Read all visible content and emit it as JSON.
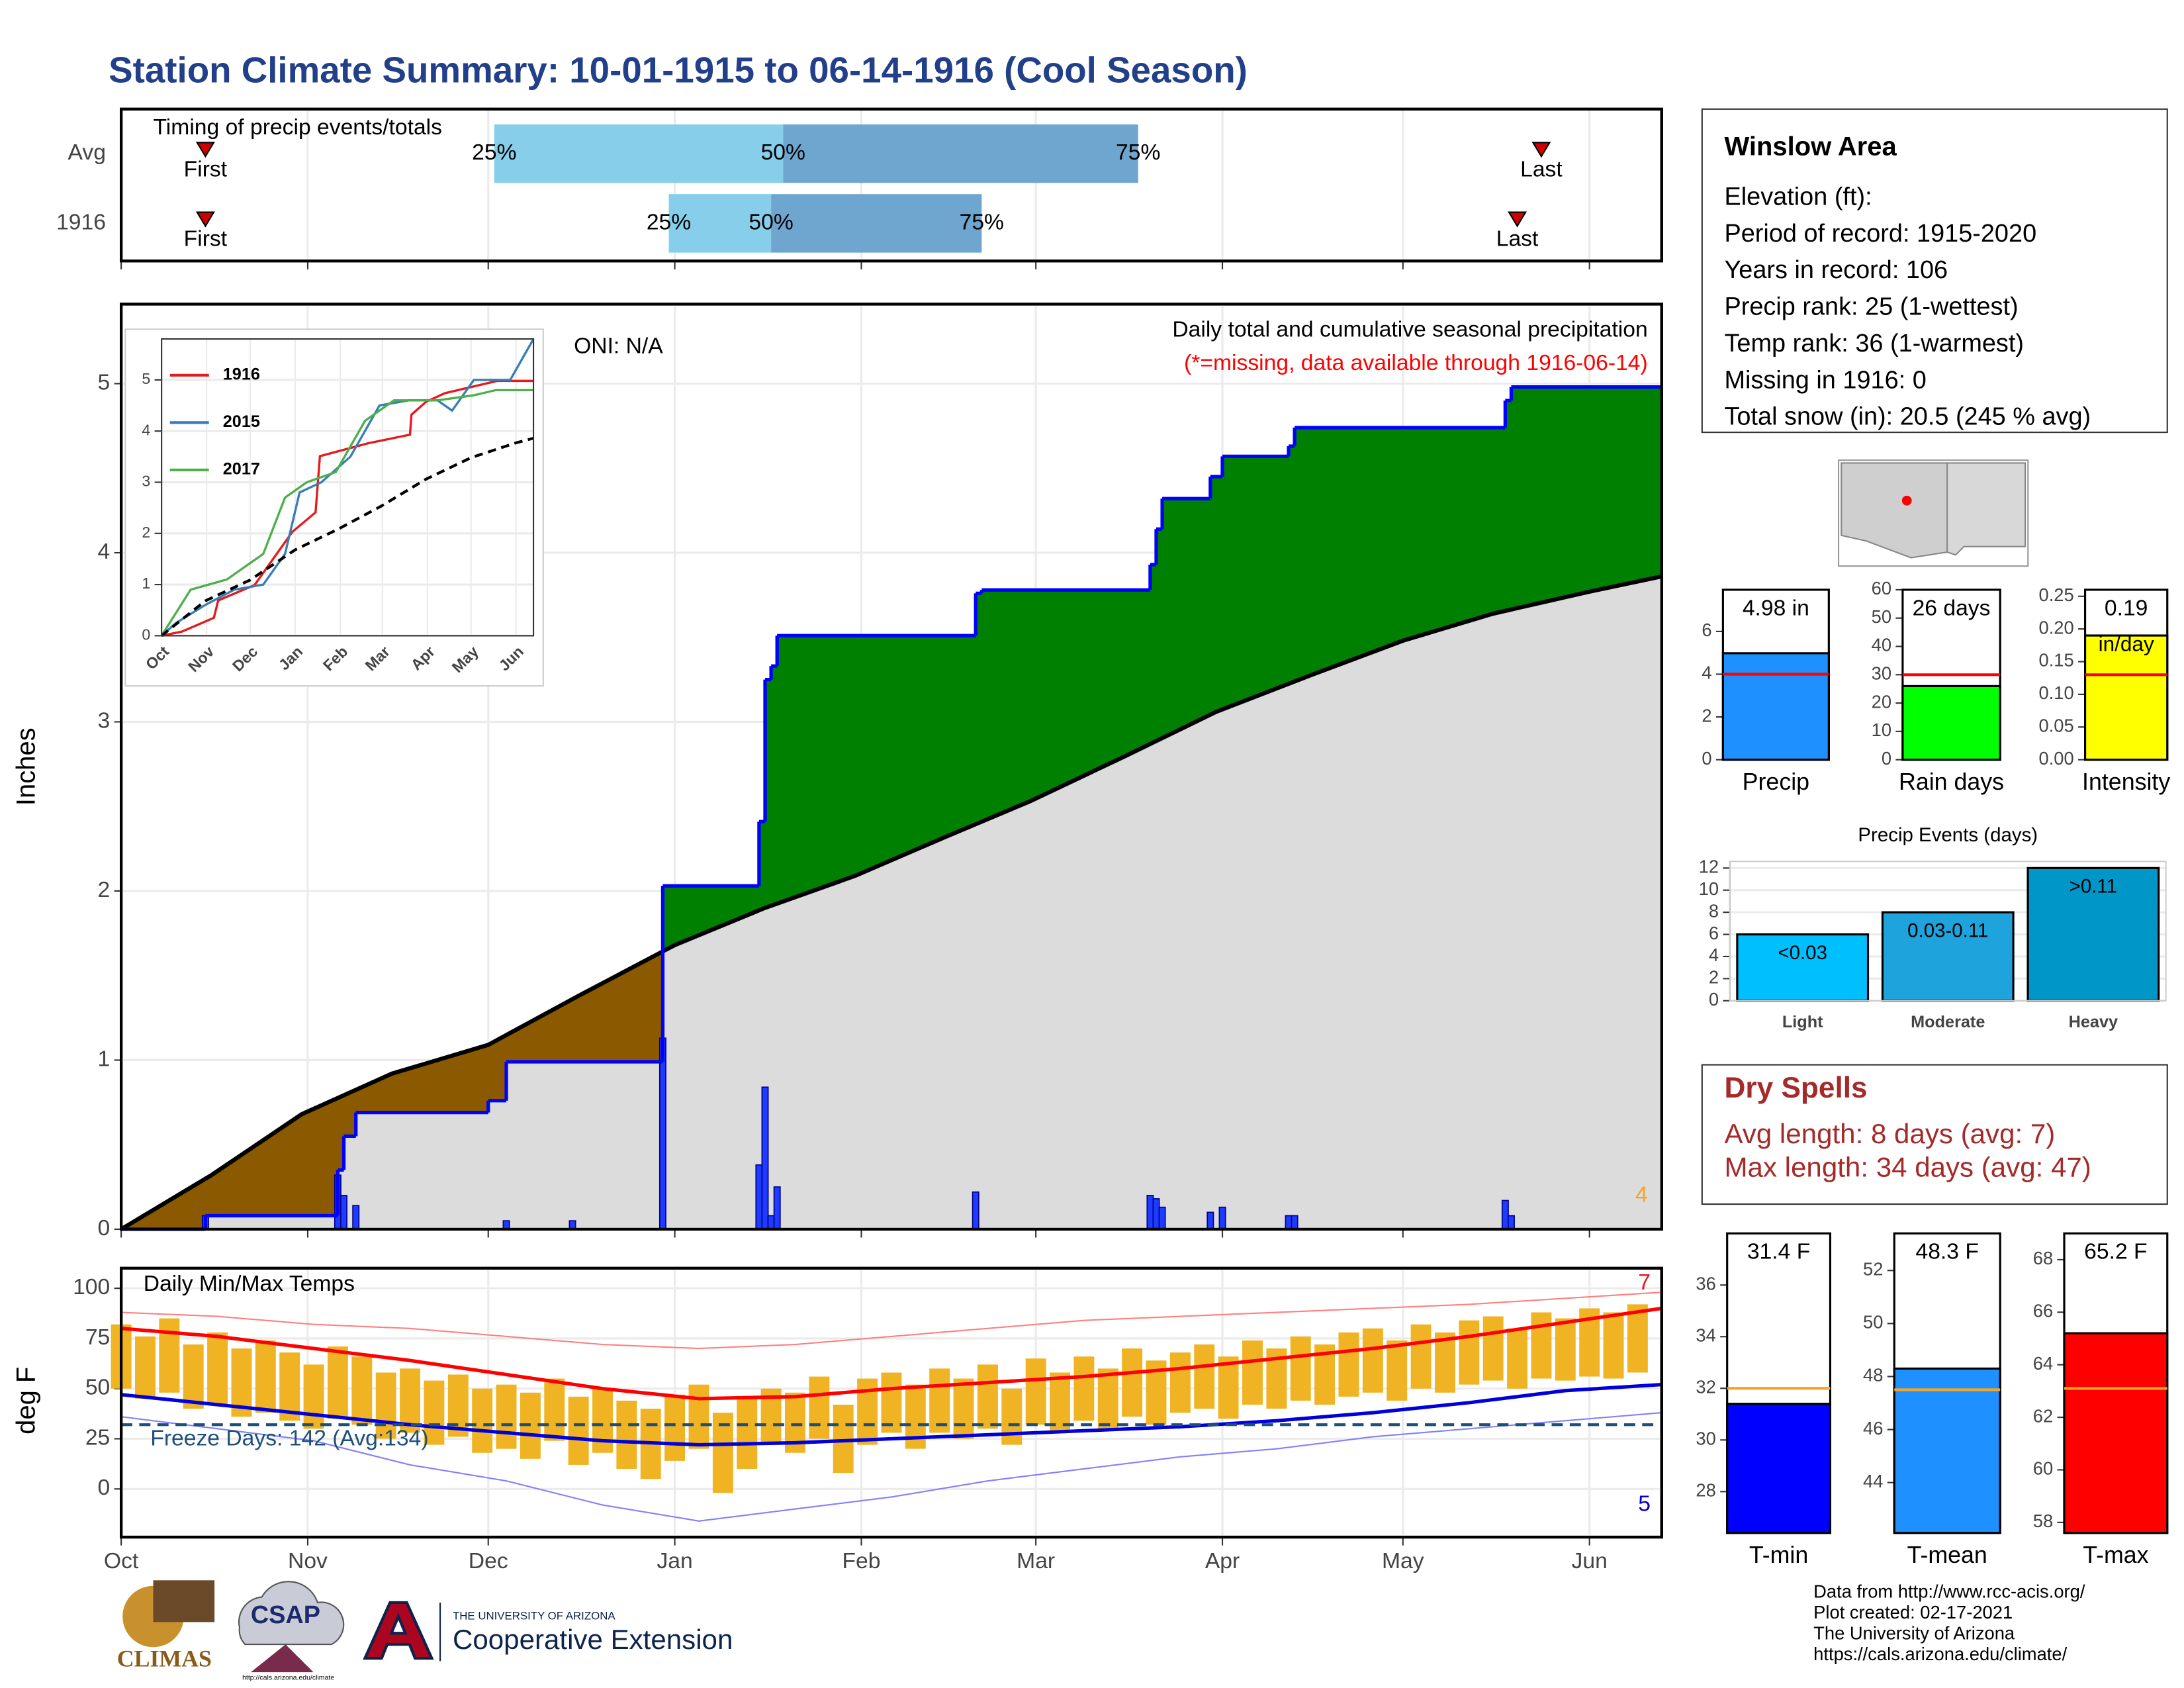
{
  "title": "Station Climate Summary: 10-01-1915 to 06-14-1916 (Cool Season)",
  "chart_data": [
    {
      "type": "timing",
      "title": "Timing of precip events/totals",
      "categories": [
        "Avg",
        "1916"
      ],
      "xlim": [
        0,
        256
      ],
      "rows": [
        {
          "first": 14,
          "q25": 62,
          "q50": 110,
          "q75": 169,
          "last": 236
        },
        {
          "first": 14,
          "q25": 91,
          "q50": 108,
          "q75": 143,
          "last": 232
        }
      ],
      "labels": {
        "first": "First",
        "last": "Last",
        "q25": "25%",
        "q50": "50%",
        "q75": "75%"
      },
      "colors": {
        "lower": "#87ceeb",
        "upper": "#6ea6cf",
        "marker": "#cc0000"
      },
      "grid": true
    },
    {
      "type": "precip",
      "title": "Daily total and cumulative seasonal precipitation",
      "subtitle": "(*=missing, data available through 1916-06-14)",
      "annotations": [
        "ONI: N/A",
        "4"
      ],
      "annotation_colors": [
        "#000000",
        "#f5a623"
      ],
      "ylabel": "Inches",
      "xlim": [
        0,
        256
      ],
      "ylim": [
        0,
        5.47
      ],
      "yticks": [
        0,
        1,
        2,
        3,
        4,
        5
      ],
      "grid": true,
      "fill_colors": {
        "above": "#008000",
        "below": "#8b5a00",
        "base": "#dcdcdc"
      },
      "series": [
        {
          "style": "step",
          "color": "#0000ff",
          "x": [
            0,
            14,
            36,
            37,
            39,
            61,
            64,
            90,
            106,
            107,
            108,
            109,
            142,
            143,
            171,
            172,
            173,
            181,
            183,
            194,
            195,
            230,
            231
          ],
          "values": [
            0,
            0.08,
            0.35,
            0.55,
            0.69,
            0.76,
            0.99,
            2.03,
            2.41,
            3.25,
            3.33,
            3.51,
            3.76,
            3.78,
            3.93,
            4.14,
            4.32,
            4.45,
            4.57,
            4.63,
            4.74,
            4.9,
            4.98
          ]
        },
        {
          "style": "line",
          "color": "#000000",
          "x": [
            0,
            15,
            30,
            45,
            61,
            76,
            92,
            107,
            122,
            137,
            151,
            167,
            182,
            198,
            213,
            228,
            244,
            256
          ],
          "values": [
            0,
            0.32,
            0.68,
            0.92,
            1.09,
            1.38,
            1.68,
            1.9,
            2.09,
            2.32,
            2.53,
            2.8,
            3.06,
            3.28,
            3.48,
            3.64,
            3.77,
            3.86
          ]
        },
        {
          "style": "bars",
          "color": "#1e3cff",
          "x": [
            14,
            36,
            37,
            39,
            64,
            75,
            90,
            106,
            107,
            108,
            109,
            142,
            171,
            172,
            173,
            181,
            183,
            194,
            195,
            230,
            231
          ],
          "values": [
            0.08,
            0.32,
            0.2,
            0.14,
            0.05,
            0.05,
            1.13,
            0.38,
            0.84,
            0.08,
            0.25,
            0.22,
            0.2,
            0.18,
            0.13,
            0.1,
            0.13,
            0.08,
            0.08,
            0.17,
            0.08
          ]
        }
      ]
    },
    {
      "type": "line",
      "xlim": [
        0,
        256
      ],
      "ylim": [
        0,
        5.8
      ],
      "yticks": [
        0,
        1,
        2,
        3,
        4,
        5
      ],
      "grid": true,
      "xticks": [
        {
          "value": 0,
          "label": "Oct"
        },
        {
          "value": 31,
          "label": "Nov"
        },
        {
          "value": 61,
          "label": "Dec"
        },
        {
          "value": 92,
          "label": "Jan"
        },
        {
          "value": 123,
          "label": "Feb"
        },
        {
          "value": 152,
          "label": "Mar"
        },
        {
          "value": 183,
          "label": "Apr"
        },
        {
          "value": 213,
          "label": "May"
        },
        {
          "value": 244,
          "label": "Jun"
        }
      ],
      "series": [
        {
          "name": "1916",
          "color": "#e41a1c",
          "x": [
            0,
            14,
            36,
            39,
            64,
            90,
            106,
            109,
            142,
            171,
            172,
            182,
            195,
            231,
            256
          ],
          "values": [
            0,
            0.08,
            0.35,
            0.69,
            0.99,
            2.03,
            2.41,
            3.51,
            3.76,
            3.93,
            4.32,
            4.57,
            4.74,
            4.98,
            4.98
          ]
        },
        {
          "name": "2015",
          "color": "#377eb8",
          "x": [
            0,
            10,
            30,
            50,
            70,
            85,
            95,
            110,
            130,
            150,
            170,
            190,
            200,
            215,
            240,
            256
          ],
          "values": [
            0,
            0.25,
            0.6,
            0.9,
            1.0,
            1.6,
            2.8,
            3.0,
            3.5,
            4.5,
            4.6,
            4.6,
            4.4,
            5.0,
            5.0,
            5.8
          ]
        },
        {
          "name": "2017",
          "color": "#4daf4a",
          "x": [
            0,
            20,
            45,
            70,
            85,
            100,
            120,
            140,
            160,
            190,
            215,
            230,
            256
          ],
          "values": [
            0,
            0.9,
            1.1,
            1.6,
            2.7,
            3.0,
            3.2,
            4.2,
            4.6,
            4.6,
            4.7,
            4.8,
            4.8
          ]
        },
        {
          "color": "#000000",
          "dash": true,
          "x": [
            0,
            30,
            61,
            92,
            122,
            151,
            182,
            213,
            244,
            256
          ],
          "values": [
            0,
            0.68,
            1.09,
            1.68,
            2.09,
            2.53,
            3.06,
            3.48,
            3.77,
            3.86
          ]
        }
      ]
    },
    {
      "type": "temps",
      "title": "Daily Min/Max Temps",
      "ylabel": "deg F",
      "annotations": [
        "Freeze Days: 142 (Avg:134)",
        "7",
        "5"
      ],
      "annotation_colors": [
        "#1f4e79",
        "#e41a1c",
        "#0000cc"
      ],
      "xlim": [
        0,
        256
      ],
      "ylim": [
        -24,
        110
      ],
      "yticks": [
        0,
        25,
        50,
        75,
        100
      ],
      "grid": true,
      "freeze": 32,
      "freeze_color": "#1f4e79",
      "xticks": [
        {
          "value": 0,
          "label": "Oct"
        },
        {
          "value": 31,
          "label": "Nov"
        },
        {
          "value": 61,
          "label": "Dec"
        },
        {
          "value": 92,
          "label": "Jan"
        },
        {
          "value": 123,
          "label": "Feb"
        },
        {
          "value": 152,
          "label": "Mar"
        },
        {
          "value": 183,
          "label": "Apr"
        },
        {
          "value": 213,
          "label": "May"
        },
        {
          "value": 244,
          "label": "Jun"
        }
      ],
      "daily": {
        "color": "#f0b323",
        "x": [
          0,
          4,
          8,
          12,
          16,
          20,
          24,
          28,
          32,
          36,
          40,
          44,
          48,
          52,
          56,
          60,
          64,
          68,
          72,
          76,
          80,
          84,
          88,
          92,
          96,
          100,
          104,
          108,
          112,
          116,
          120,
          124,
          128,
          132,
          136,
          140,
          144,
          148,
          152,
          156,
          160,
          164,
          168,
          172,
          176,
          180,
          184,
          188,
          192,
          196,
          200,
          204,
          208,
          212,
          216,
          220,
          224,
          228,
          232,
          236,
          240,
          244,
          248,
          252
        ],
        "high": [
          82,
          76,
          85,
          72,
          78,
          70,
          74,
          68,
          62,
          71,
          66,
          58,
          60,
          54,
          57,
          50,
          52,
          48,
          55,
          46,
          50,
          44,
          40,
          47,
          52,
          38,
          45,
          50,
          48,
          56,
          42,
          55,
          58,
          52,
          60,
          55,
          62,
          50,
          65,
          58,
          66,
          60,
          70,
          64,
          68,
          72,
          66,
          74,
          70,
          76,
          72,
          78,
          80,
          74,
          82,
          78,
          84,
          86,
          80,
          88,
          85,
          90,
          88,
          92
        ],
        "low": [
          50,
          45,
          48,
          40,
          42,
          36,
          38,
          34,
          30,
          35,
          32,
          25,
          28,
          22,
          26,
          18,
          20,
          15,
          24,
          12,
          18,
          10,
          5,
          14,
          20,
          -2,
          10,
          22,
          18,
          25,
          8,
          22,
          28,
          20,
          28,
          25,
          30,
          22,
          32,
          28,
          34,
          30,
          36,
          32,
          38,
          40,
          35,
          42,
          40,
          44,
          42,
          46,
          48,
          44,
          50,
          48,
          52,
          54,
          50,
          55,
          54,
          56,
          55,
          58
        ]
      },
      "series": [
        {
          "style": "thin",
          "color": "#ff8080",
          "x": [
            0,
            16,
            32,
            48,
            64,
            80,
            96,
            112,
            128,
            144,
            160,
            176,
            192,
            208,
            224,
            240,
            256
          ],
          "values": [
            88,
            86,
            82,
            80,
            76,
            72,
            70,
            72,
            76,
            80,
            84,
            86,
            88,
            90,
            92,
            95,
            98
          ]
        },
        {
          "style": "thin",
          "color": "#8080ff",
          "x": [
            0,
            16,
            32,
            48,
            64,
            80,
            96,
            112,
            128,
            144,
            160,
            176,
            192,
            208,
            224,
            240,
            256
          ],
          "values": [
            36,
            30,
            24,
            12,
            4,
            -8,
            -16,
            -10,
            -4,
            4,
            10,
            16,
            20,
            26,
            30,
            34,
            38
          ]
        },
        {
          "style": "line",
          "color": "#ff0000",
          "x": [
            0,
            16,
            32,
            48,
            64,
            80,
            96,
            112,
            128,
            144,
            160,
            176,
            192,
            208,
            224,
            240,
            256
          ],
          "values": [
            80,
            76,
            70,
            64,
            57,
            50,
            45,
            46,
            50,
            53,
            56,
            60,
            65,
            70,
            76,
            83,
            90
          ]
        },
        {
          "style": "line",
          "color": "#0000dd",
          "x": [
            0,
            16,
            32,
            48,
            64,
            80,
            96,
            112,
            128,
            144,
            160,
            176,
            192,
            208,
            224,
            240,
            256
          ],
          "values": [
            47,
            42,
            37,
            32,
            28,
            24,
            22,
            23,
            25,
            27,
            29,
            31,
            34,
            38,
            43,
            49,
            52
          ]
        }
      ]
    },
    {
      "type": "bar",
      "categories": [
        "Precip"
      ],
      "values": [
        4.98
      ],
      "value_labels": [
        "4.98 in"
      ],
      "colors": [
        "#1e90ff"
      ],
      "avg": 4.0,
      "avg_color": "#ff0000",
      "ylim": [
        0,
        7.95
      ],
      "yticks": [
        0,
        2,
        4,
        6
      ]
    },
    {
      "type": "bar",
      "categories": [
        "Rain days"
      ],
      "values": [
        26
      ],
      "value_labels": [
        "26 days"
      ],
      "colors": [
        "#00ff00"
      ],
      "avg": 30,
      "avg_color": "#ff0000",
      "ylim": [
        0,
        60
      ],
      "yticks": [
        0,
        10,
        20,
        30,
        40,
        50,
        60
      ]
    },
    {
      "type": "bar",
      "categories": [
        "Intensity"
      ],
      "values": [
        0.19
      ],
      "unit_label": "in/day",
      "colors": [
        "#ffff00"
      ],
      "avg": 0.13,
      "avg_color": "#ff0000",
      "ylim": [
        0,
        0.26
      ],
      "yticks": [
        {
          "value": 0,
          "label": "0.00"
        },
        0.05,
        {
          "value": 0.1,
          "label": "0.10"
        },
        0.15,
        {
          "value": 0.2,
          "label": "0.20"
        },
        0.25
      ]
    },
    {
      "type": "bar",
      "title": "Precip Events (days)",
      "categories": [
        "Light",
        "Moderate",
        "Heavy"
      ],
      "values": [
        6,
        8,
        12
      ],
      "bin_labels": [
        "<0.03",
        "0.03-0.11",
        ">0.11"
      ],
      "colors": [
        "#00bfff",
        "#1ea3dc",
        "#0096c8"
      ],
      "ylim": [
        0,
        12.6
      ],
      "yticks": [
        0,
        2,
        4,
        6,
        8,
        10,
        12
      ],
      "grid": true
    },
    {
      "type": "bar",
      "categories": [
        "T-min"
      ],
      "values": [
        31.4
      ],
      "value_labels": [
        "31.4 F"
      ],
      "colors": [
        "#0000ff"
      ],
      "avg": 32.0,
      "avg_color": "#f5a623",
      "ylim": [
        26.4,
        38
      ],
      "yticks": [
        28,
        30,
        32,
        34,
        36
      ]
    },
    {
      "type": "bar",
      "categories": [
        "T-mean"
      ],
      "values": [
        48.3
      ],
      "value_labels": [
        "48.3 F"
      ],
      "colors": [
        "#1e90ff"
      ],
      "avg": 47.5,
      "avg_color": "#f5a623",
      "ylim": [
        42.1,
        53.4
      ],
      "yticks": [
        44,
        46,
        48,
        50,
        52
      ]
    },
    {
      "type": "bar",
      "categories": [
        "T-max"
      ],
      "values": [
        65.2
      ],
      "value_labels": [
        "65.2 F"
      ],
      "colors": [
        "#ff0000"
      ],
      "avg": 63.1,
      "avg_color": "#f5a623",
      "ylim": [
        57.6,
        69
      ],
      "yticks": [
        58,
        60,
        62,
        64,
        66,
        68
      ]
    }
  ],
  "info": {
    "title": "Winslow Area",
    "lines": [
      "Elevation (ft):",
      "Period of record: 1915-2020",
      "Years in record: 106",
      "Precip rank: 25 (1-wettest)",
      "Temp rank: 36 (1-warmest)",
      "Missing in 1916: 0",
      "Total snow (in): 20.5 (245 % avg)"
    ]
  },
  "dry_spells": {
    "title": "Dry Spells",
    "lines": [
      "Avg length: 8 days (avg: 7)",
      "Max length: 34 days (avg: 47)"
    ]
  },
  "footer": {
    "lines": [
      "Data from http://www.rcc-acis.org/",
      "Plot created: 02-17-2021",
      "The University of Arizona",
      "https://cals.arizona.edu/climate/"
    ],
    "logos": [
      "CLIMAS",
      "CSAP",
      "http://cals.arizona.edu/climate",
      "THE UNIVERSITY OF ARIZONA",
      "Cooperative Extension"
    ]
  }
}
